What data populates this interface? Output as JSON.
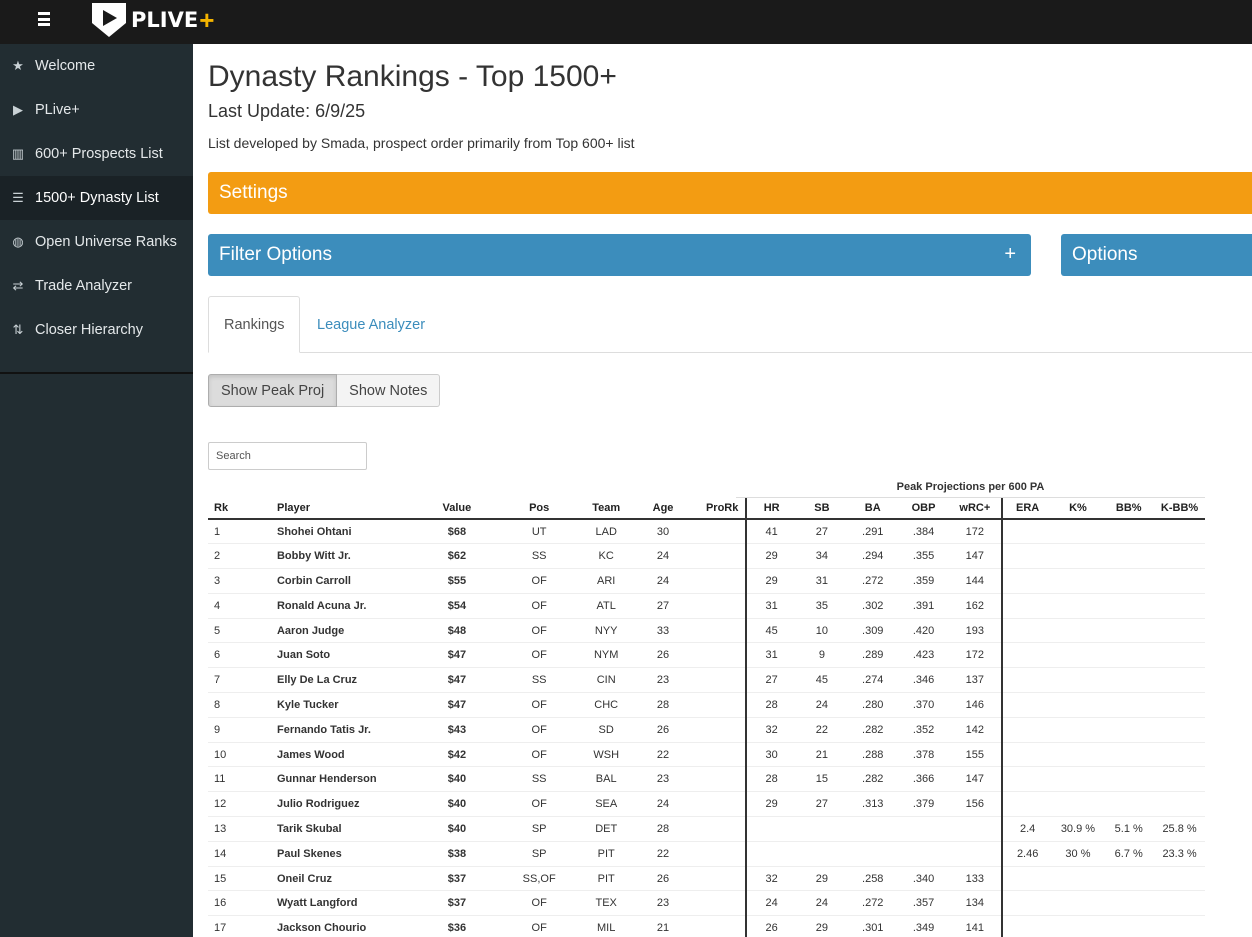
{
  "header": {
    "logo_text": "PLIVE",
    "logo_plus": "+"
  },
  "sidebar": {
    "items": [
      {
        "label": "Welcome",
        "icon": "star-icon",
        "glyph": "★"
      },
      {
        "label": "PLive+",
        "icon": "play-icon",
        "glyph": "▶"
      },
      {
        "label": "600+ Prospects List",
        "icon": "bar-chart-icon",
        "glyph": "▥"
      },
      {
        "label": "1500+ Dynasty List",
        "icon": "list-icon",
        "glyph": "☰",
        "active": true
      },
      {
        "label": "Open Universe Ranks",
        "icon": "globe-icon",
        "glyph": "◍"
      },
      {
        "label": "Trade Analyzer",
        "icon": "exchange-icon",
        "glyph": "⇄"
      },
      {
        "label": "Closer Hierarchy",
        "icon": "sort-icon",
        "glyph": "⇅"
      }
    ]
  },
  "main": {
    "title": "Dynasty Rankings - Top 1500+",
    "last_update": "Last Update: 6/9/25",
    "subtitle": "List developed by Smada, prospect order primarily from Top 600+ list",
    "settings_label": "Settings",
    "filter_label": "Filter Options",
    "filter_plus": "+",
    "options_label": "Options",
    "tabs": [
      {
        "label": "Rankings",
        "active": true
      },
      {
        "label": "League Analyzer",
        "active": false
      }
    ],
    "buttons": {
      "peak": "Show Peak Proj",
      "notes": "Show Notes"
    },
    "search_placeholder": "Search"
  },
  "table": {
    "group_header": "Peak Projections per 600 PA",
    "columns": [
      "Rk",
      "Player",
      "Value",
      "Pos",
      "Team",
      "Age",
      "ProRk",
      "HR",
      "SB",
      "BA",
      "OBP",
      "wRC+",
      "ERA",
      "K%",
      "BB%",
      "K-BB%"
    ],
    "rows": [
      [
        "1",
        "Shohei Ohtani",
        "$68",
        "UT",
        "LAD",
        "30",
        "",
        "41",
        "27",
        ".291",
        ".384",
        "172",
        "",
        "",
        "",
        ""
      ],
      [
        "2",
        "Bobby Witt Jr.",
        "$62",
        "SS",
        "KC",
        "24",
        "",
        "29",
        "34",
        ".294",
        ".355",
        "147",
        "",
        "",
        "",
        ""
      ],
      [
        "3",
        "Corbin Carroll",
        "$55",
        "OF",
        "ARI",
        "24",
        "",
        "29",
        "31",
        ".272",
        ".359",
        "144",
        "",
        "",
        "",
        ""
      ],
      [
        "4",
        "Ronald Acuna Jr.",
        "$54",
        "OF",
        "ATL",
        "27",
        "",
        "31",
        "35",
        ".302",
        ".391",
        "162",
        "",
        "",
        "",
        ""
      ],
      [
        "5",
        "Aaron Judge",
        "$48",
        "OF",
        "NYY",
        "33",
        "",
        "45",
        "10",
        ".309",
        ".420",
        "193",
        "",
        "",
        "",
        ""
      ],
      [
        "6",
        "Juan Soto",
        "$47",
        "OF",
        "NYM",
        "26",
        "",
        "31",
        "9",
        ".289",
        ".423",
        "172",
        "",
        "",
        "",
        ""
      ],
      [
        "7",
        "Elly De La Cruz",
        "$47",
        "SS",
        "CIN",
        "23",
        "",
        "27",
        "45",
        ".274",
        ".346",
        "137",
        "",
        "",
        "",
        ""
      ],
      [
        "8",
        "Kyle Tucker",
        "$47",
        "OF",
        "CHC",
        "28",
        "",
        "28",
        "24",
        ".280",
        ".370",
        "146",
        "",
        "",
        "",
        ""
      ],
      [
        "9",
        "Fernando Tatis Jr.",
        "$43",
        "OF",
        "SD",
        "26",
        "",
        "32",
        "22",
        ".282",
        ".352",
        "142",
        "",
        "",
        "",
        ""
      ],
      [
        "10",
        "James Wood",
        "$42",
        "OF",
        "WSH",
        "22",
        "",
        "30",
        "21",
        ".288",
        ".378",
        "155",
        "",
        "",
        "",
        ""
      ],
      [
        "11",
        "Gunnar Henderson",
        "$40",
        "SS",
        "BAL",
        "23",
        "",
        "28",
        "15",
        ".282",
        ".366",
        "147",
        "",
        "",
        "",
        ""
      ],
      [
        "12",
        "Julio Rodriguez",
        "$40",
        "OF",
        "SEA",
        "24",
        "",
        "29",
        "27",
        ".313",
        ".379",
        "156",
        "",
        "",
        "",
        ""
      ],
      [
        "13",
        "Tarik Skubal",
        "$40",
        "SP",
        "DET",
        "28",
        "",
        "",
        "",
        "",
        "",
        "",
        "2.4",
        "30.9 %",
        "5.1 %",
        "25.8 %"
      ],
      [
        "14",
        "Paul Skenes",
        "$38",
        "SP",
        "PIT",
        "22",
        "",
        "",
        "",
        "",
        "",
        "",
        "2.46",
        "30 %",
        "6.7 %",
        "23.3 %"
      ],
      [
        "15",
        "Oneil Cruz",
        "$37",
        "SS,OF",
        "PIT",
        "26",
        "",
        "32",
        "29",
        ".258",
        ".340",
        "133",
        "",
        "",
        "",
        ""
      ],
      [
        "16",
        "Wyatt Langford",
        "$37",
        "OF",
        "TEX",
        "23",
        "",
        "24",
        "24",
        ".272",
        ".357",
        "134",
        "",
        "",
        "",
        ""
      ],
      [
        "17",
        "Jackson Chourio",
        "$36",
        "OF",
        "MIL",
        "21",
        "",
        "26",
        "29",
        ".301",
        ".349",
        "141",
        "",
        "",
        "",
        ""
      ]
    ]
  },
  "colors": {
    "topbar": "#1a1a1a",
    "sidebar": "#222d32",
    "settings": "#f39c12",
    "filter": "#3c8dbc",
    "link": "#3c8dbc"
  }
}
